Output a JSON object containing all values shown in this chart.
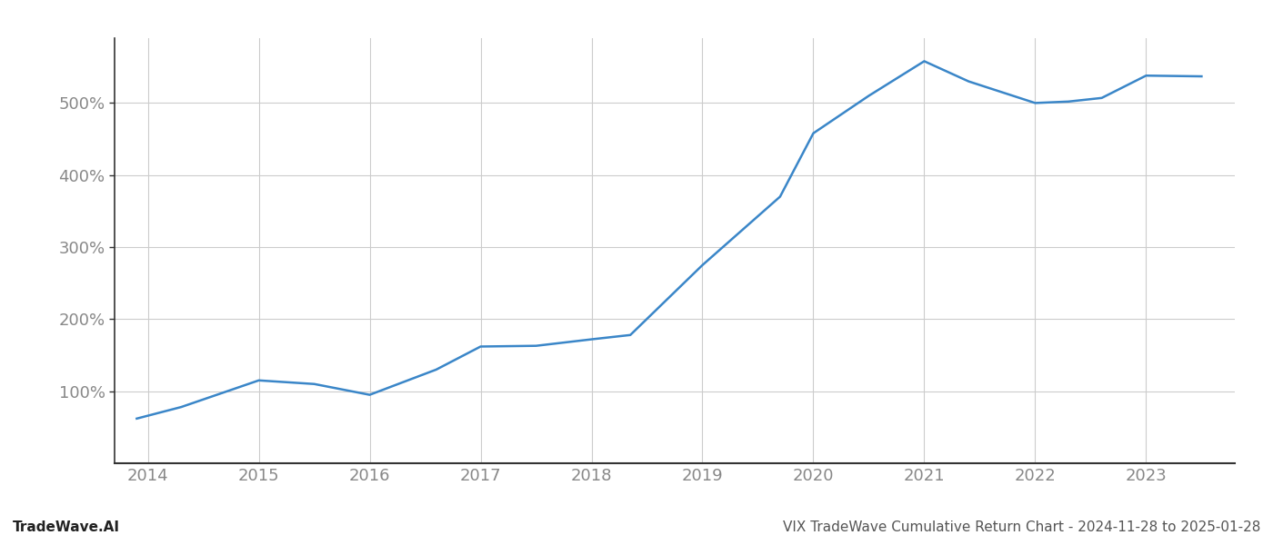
{
  "x": [
    2013.9,
    2014.3,
    2015.0,
    2015.5,
    2016.0,
    2016.6,
    2017.0,
    2017.5,
    2018.0,
    2018.35,
    2019.0,
    2019.7,
    2020.0,
    2020.5,
    2021.0,
    2021.4,
    2022.0,
    2022.3,
    2022.6,
    2023.0,
    2023.5
  ],
  "y": [
    62,
    78,
    115,
    110,
    95,
    130,
    162,
    163,
    172,
    178,
    275,
    370,
    458,
    510,
    558,
    530,
    500,
    502,
    507,
    538,
    537
  ],
  "line_color": "#3a86c8",
  "line_width": 1.8,
  "background_color": "#ffffff",
  "grid_color": "#cccccc",
  "yticks": [
    100,
    200,
    300,
    400,
    500
  ],
  "xticks": [
    2014,
    2015,
    2016,
    2017,
    2018,
    2019,
    2020,
    2021,
    2022,
    2023
  ],
  "ylim": [
    0,
    590
  ],
  "xlim": [
    2013.7,
    2023.8
  ],
  "watermark_left": "TradeWave.AI",
  "watermark_right": "VIX TradeWave Cumulative Return Chart - 2024-11-28 to 2025-01-28",
  "tick_fontsize": 13,
  "watermark_fontsize": 11,
  "spine_color": "#333333",
  "tick_color": "#888888",
  "label_color": "#888888"
}
